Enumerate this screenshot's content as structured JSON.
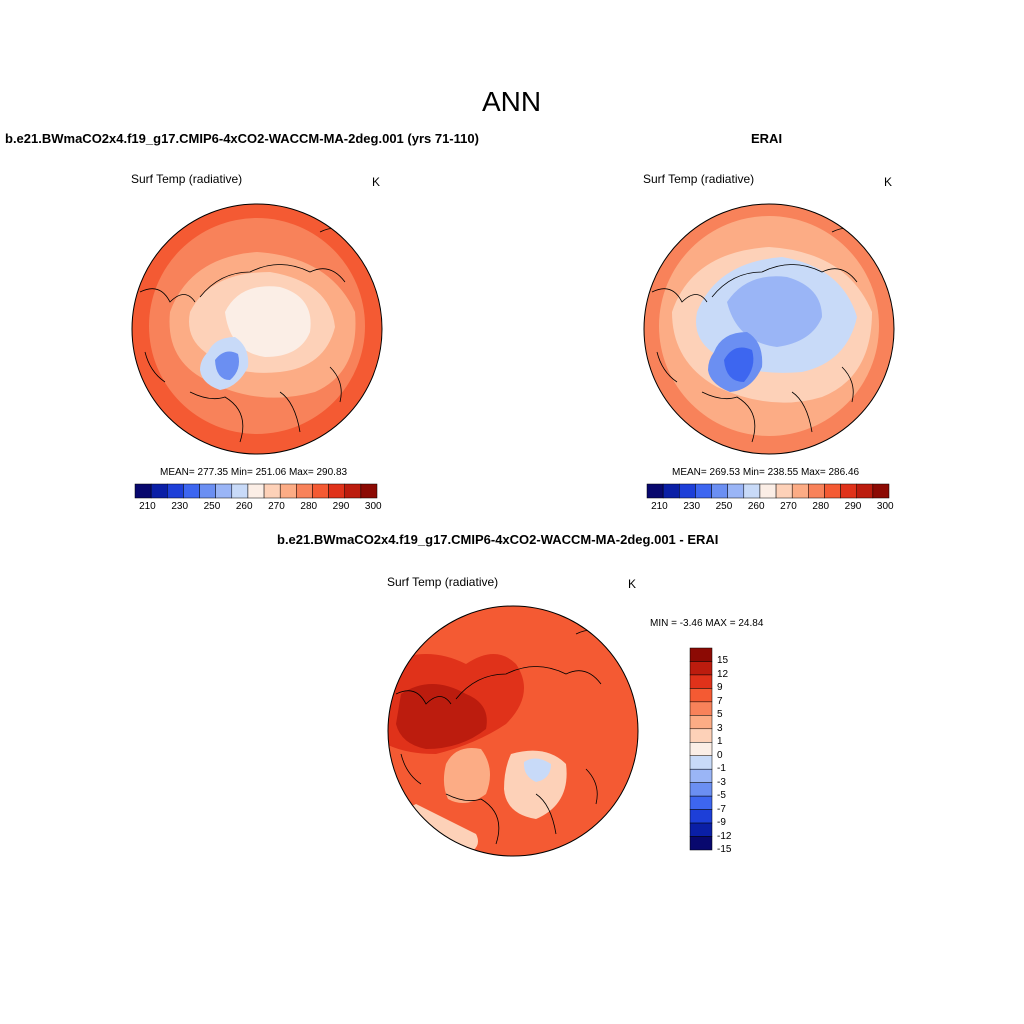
{
  "title": "ANN",
  "panels": [
    {
      "case": "b.e21.BWmaCO2x4.f19_g17.CMIP6-4xCO2-WACCM-MA-2deg.001 (yrs 71-110)",
      "field": "Surf Temp (radiative)",
      "units": "K",
      "stats": "MEAN= 277.35  Min= 251.06  Max= 290.83",
      "mean": 277.35,
      "min": 251.06,
      "max": 290.83
    },
    {
      "case": "ERAI",
      "field": "Surf Temp (radiative)",
      "units": "K",
      "stats": "MEAN= 269.53  Min= 238.55  Max= 286.46",
      "mean": 269.53,
      "min": 238.55,
      "max": 286.46
    },
    {
      "case": "b.e21.BWmaCO2x4.f19_g17.CMIP6-4xCO2-WACCM-MA-2deg.001 - ERAI",
      "field": "Surf Temp (radiative)",
      "units": "K",
      "stats": "MIN =  -3.46 MAX =  24.84",
      "min": -3.46,
      "max": 24.84
    }
  ],
  "abs_colorbar": {
    "colors": [
      "#08086e",
      "#0a1fa6",
      "#1d3fd8",
      "#3d66f0",
      "#6b8ff2",
      "#9ab5f6",
      "#c8daf8",
      "#fbeee6",
      "#fdd1b8",
      "#fcac85",
      "#f8825a",
      "#f45a33",
      "#e0321a",
      "#bc1c0e",
      "#8c0a04"
    ],
    "labels": [
      "210",
      "230",
      "250",
      "260",
      "270",
      "280",
      "290",
      "300"
    ]
  },
  "diff_colorbar": {
    "colors": [
      "#8c0a04",
      "#bc1c0e",
      "#e0321a",
      "#f45a33",
      "#f8825a",
      "#fcac85",
      "#fdd1b8",
      "#fbeee6",
      "#c8daf8",
      "#9ab5f6",
      "#6b8ff2",
      "#3d66f0",
      "#1d3fd8",
      "#0a1fa6",
      "#08086e"
    ],
    "labels": [
      "15",
      "12",
      "9",
      "7",
      "5",
      "3",
      "1",
      "0",
      "-1",
      "-3",
      "-5",
      "-7",
      "-9",
      "-12",
      "-15"
    ]
  }
}
